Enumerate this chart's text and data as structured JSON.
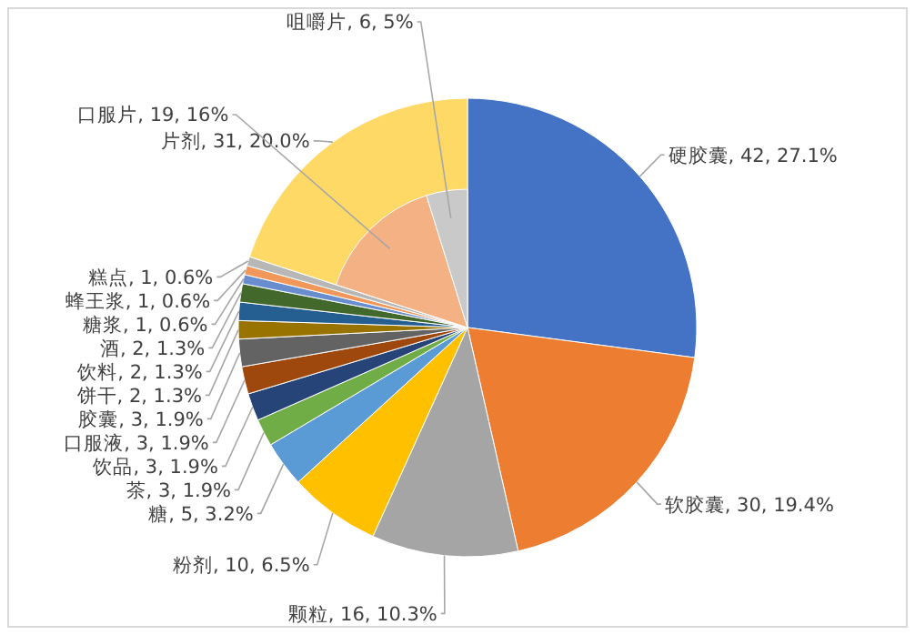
{
  "chart_data": {
    "type": "pie",
    "categories": [
      "硬胶囊",
      "软胶囊",
      "颗粒",
      "粉剂",
      "糖",
      "茶",
      "饮品",
      "口服液",
      "胶囊",
      "饼干",
      "饮料",
      "酒",
      "糖浆",
      "蜂王浆",
      "糕点",
      "片剂",
      "口服片",
      "咀嚼片"
    ],
    "colors": [
      "#4472c4",
      "#ed7d31",
      "#a5a5a5",
      "#ffc000",
      "#5b9bd5",
      "#70ad47",
      "#264478",
      "#9e480e",
      "#636363",
      "#997300",
      "#255e91",
      "#43682b",
      "#698ed0",
      "#f1975a",
      "#b7b7b7",
      "#ffd966",
      "#f4b183",
      "#c9c9c9"
    ],
    "series": [
      {
        "values": [
          42,
          30,
          16,
          10,
          5,
          3,
          3,
          3,
          3,
          2,
          2,
          2,
          1,
          1,
          1,
          31,
          null,
          null
        ],
        "value_labels": [
          ", 42, 27.1%",
          ", 30, 19.4%",
          ", 16, 10.3%",
          ", 10, 6.5%",
          ", 5, 3.2%",
          ", 3, 1.9%",
          ", 3, 1.9%",
          ", 3, 1.9%",
          ", 3, 1.9%",
          ", 2, 1.3%",
          ", 2, 1.3%",
          ", 2, 1.3%",
          ", 1, 0.6%",
          ", 1, 0.6%",
          ", 1, 0.6%",
          ", 31, 20.0%",
          null,
          null
        ]
      },
      {
        "values": [
          null,
          null,
          null,
          null,
          null,
          null,
          null,
          null,
          null,
          null,
          null,
          null,
          null,
          null,
          null,
          null,
          19,
          6
        ],
        "value_labels": [
          null,
          null,
          null,
          null,
          null,
          null,
          null,
          null,
          null,
          null,
          null,
          null,
          null,
          null,
          null,
          null,
          ", 19, 16%",
          ", 6, 5%"
        ]
      }
    ]
  }
}
